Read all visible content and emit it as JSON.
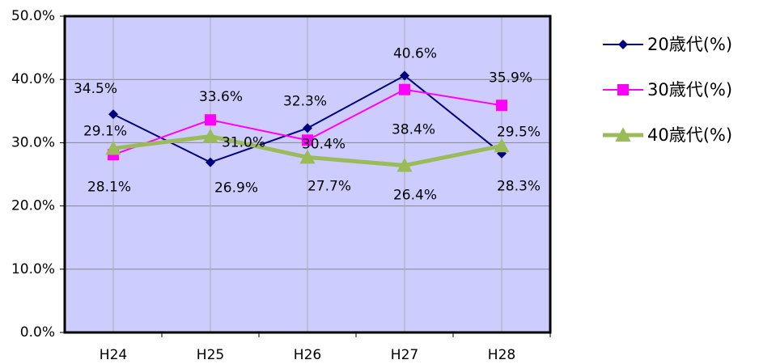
{
  "chart_data": {
    "type": "line",
    "categories": [
      "H24",
      "H25",
      "H26",
      "H27",
      "H28"
    ],
    "series": [
      {
        "name": "20歳代(%)",
        "color": "#000080",
        "marker": "diamond",
        "values": [
          34.5,
          26.9,
          32.3,
          40.6,
          28.3
        ],
        "value_labels": [
          "34.5%",
          "26.9%",
          "32.3%",
          "40.6%",
          "28.3%"
        ]
      },
      {
        "name": "30歳代(%)",
        "color": "#ff00ff",
        "marker": "square",
        "values": [
          28.1,
          33.6,
          30.4,
          38.4,
          35.9
        ],
        "value_labels": [
          "28.1%",
          "33.6%",
          "30.4%",
          "38.4%",
          "35.9%"
        ]
      },
      {
        "name": "40歳代(%)",
        "color": "#9bbb59",
        "marker": "triangle",
        "values": [
          29.1,
          31.0,
          27.7,
          26.4,
          29.5
        ],
        "value_labels": [
          "29.1%",
          "31.0%",
          "27.7%",
          "26.4%",
          "29.5%"
        ]
      }
    ],
    "ylim": [
      0,
      50
    ],
    "yticks": [
      {
        "value": 0,
        "label": "0.0%"
      },
      {
        "value": 10,
        "label": "10.0%"
      },
      {
        "value": 20,
        "label": "20.0%"
      },
      {
        "value": 30,
        "label": "30.0%"
      },
      {
        "value": 40,
        "label": "40.0%"
      },
      {
        "value": 50,
        "label": "50.0%"
      }
    ],
    "grid": true,
    "legend": "right"
  }
}
